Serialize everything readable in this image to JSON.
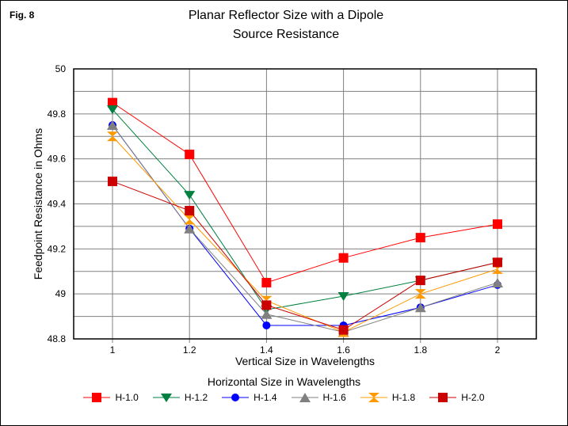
{
  "figure_label": "Fig. 8",
  "chart_data": {
    "type": "line",
    "title": [
      "Planar Reflector Size with a Dipole",
      "Source Resistance"
    ],
    "xlabel": "Vertical Size in Wavelengths",
    "ylabel": "Feedpoint Resistance in Ohms",
    "x": [
      1,
      1.2,
      1.4,
      1.6,
      1.8,
      2
    ],
    "x_tick_labels": [
      "1",
      "1.2",
      "1.4",
      "1.6",
      "1.8",
      "2"
    ],
    "ylim": [
      48.8,
      50
    ],
    "y_ticks": [
      48.8,
      49,
      49.2,
      49.4,
      49.6,
      49.8,
      50
    ],
    "y_tick_labels": [
      "48.8",
      "49",
      "49.2",
      "49.4",
      "49.6",
      "49.8",
      "50"
    ],
    "grid": true,
    "legend_title": "Horizontal Size in Wavelengths",
    "legend_position": "bottom",
    "series": [
      {
        "name": "H-1.0",
        "color": "#ff0000",
        "marker": "square",
        "values": [
          49.85,
          49.62,
          49.05,
          49.16,
          49.25,
          49.31
        ]
      },
      {
        "name": "H-1.2",
        "color": "#008040",
        "marker": "triangle-down",
        "values": [
          49.82,
          49.44,
          48.93,
          48.99,
          49.06,
          49.14
        ]
      },
      {
        "name": "H-1.4",
        "color": "#0000ff",
        "marker": "circle",
        "values": [
          49.75,
          49.29,
          48.86,
          48.86,
          48.94,
          49.04
        ]
      },
      {
        "name": "H-1.6",
        "color": "#808080",
        "marker": "triangle-up",
        "values": [
          49.75,
          49.29,
          48.91,
          48.83,
          48.94,
          49.05
        ]
      },
      {
        "name": "H-1.8",
        "color": "#ff9900",
        "marker": "hourglass",
        "values": [
          49.7,
          49.33,
          48.97,
          48.83,
          49.0,
          49.11
        ]
      },
      {
        "name": "H-2.0",
        "color": "#cc0000",
        "marker": "square",
        "values": [
          49.5,
          49.37,
          48.95,
          48.84,
          49.06,
          49.14
        ]
      }
    ]
  }
}
